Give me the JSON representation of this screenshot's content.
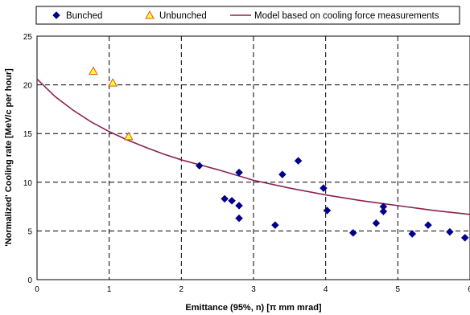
{
  "chart_data": {
    "type": "scatter",
    "xlabel": "Emittance (95%, n) [π mm mrad]",
    "ylabel": "'Normalized' Cooling rate [MeV/c per hour]",
    "xlim": [
      0,
      6
    ],
    "ylim": [
      0,
      25
    ],
    "x_ticks": [
      "0",
      "1",
      "2",
      "3",
      "4",
      "5",
      "6"
    ],
    "y_ticks": [
      "0",
      "5",
      "10",
      "15",
      "20",
      "25"
    ],
    "grid": true,
    "legend_position": "top",
    "series": [
      {
        "name": "Bunched",
        "kind": "markers",
        "marker": "diamond",
        "color": "#00008B",
        "points": [
          [
            2.25,
            11.7
          ],
          [
            2.6,
            8.3
          ],
          [
            2.7,
            8.1
          ],
          [
            2.8,
            11.0
          ],
          [
            2.8,
            7.6
          ],
          [
            2.8,
            6.3
          ],
          [
            3.3,
            5.6
          ],
          [
            3.4,
            10.8
          ],
          [
            3.62,
            12.2
          ],
          [
            3.97,
            9.4
          ],
          [
            4.02,
            7.1
          ],
          [
            4.38,
            4.8
          ],
          [
            4.7,
            5.8
          ],
          [
            4.8,
            7.5
          ],
          [
            4.8,
            7.0
          ],
          [
            5.2,
            4.7
          ],
          [
            5.42,
            5.6
          ],
          [
            5.72,
            4.9
          ],
          [
            5.93,
            4.3
          ]
        ]
      },
      {
        "name": "Unbunched",
        "kind": "markers",
        "marker": "triangle",
        "color": "#FFFF33",
        "edge_color": "#E0502A",
        "points": [
          [
            0.78,
            21.4
          ],
          [
            1.05,
            20.2
          ],
          [
            1.27,
            14.7
          ]
        ]
      },
      {
        "name": "Model based on cooling force measurements",
        "kind": "line",
        "color": "#8B2252",
        "points": [
          [
            0,
            20.6
          ],
          [
            0.25,
            18.8
          ],
          [
            0.5,
            17.4
          ],
          [
            0.75,
            16.2
          ],
          [
            1.0,
            15.2
          ],
          [
            1.25,
            14.35
          ],
          [
            1.5,
            13.6
          ],
          [
            1.75,
            12.9
          ],
          [
            2.0,
            12.3
          ],
          [
            2.5,
            11.3
          ],
          [
            3.0,
            10.2
          ],
          [
            3.5,
            9.4
          ],
          [
            4.0,
            8.7
          ],
          [
            4.5,
            8.1
          ],
          [
            5.0,
            7.6
          ],
          [
            5.5,
            7.1
          ],
          [
            6.0,
            6.7
          ]
        ]
      }
    ]
  }
}
